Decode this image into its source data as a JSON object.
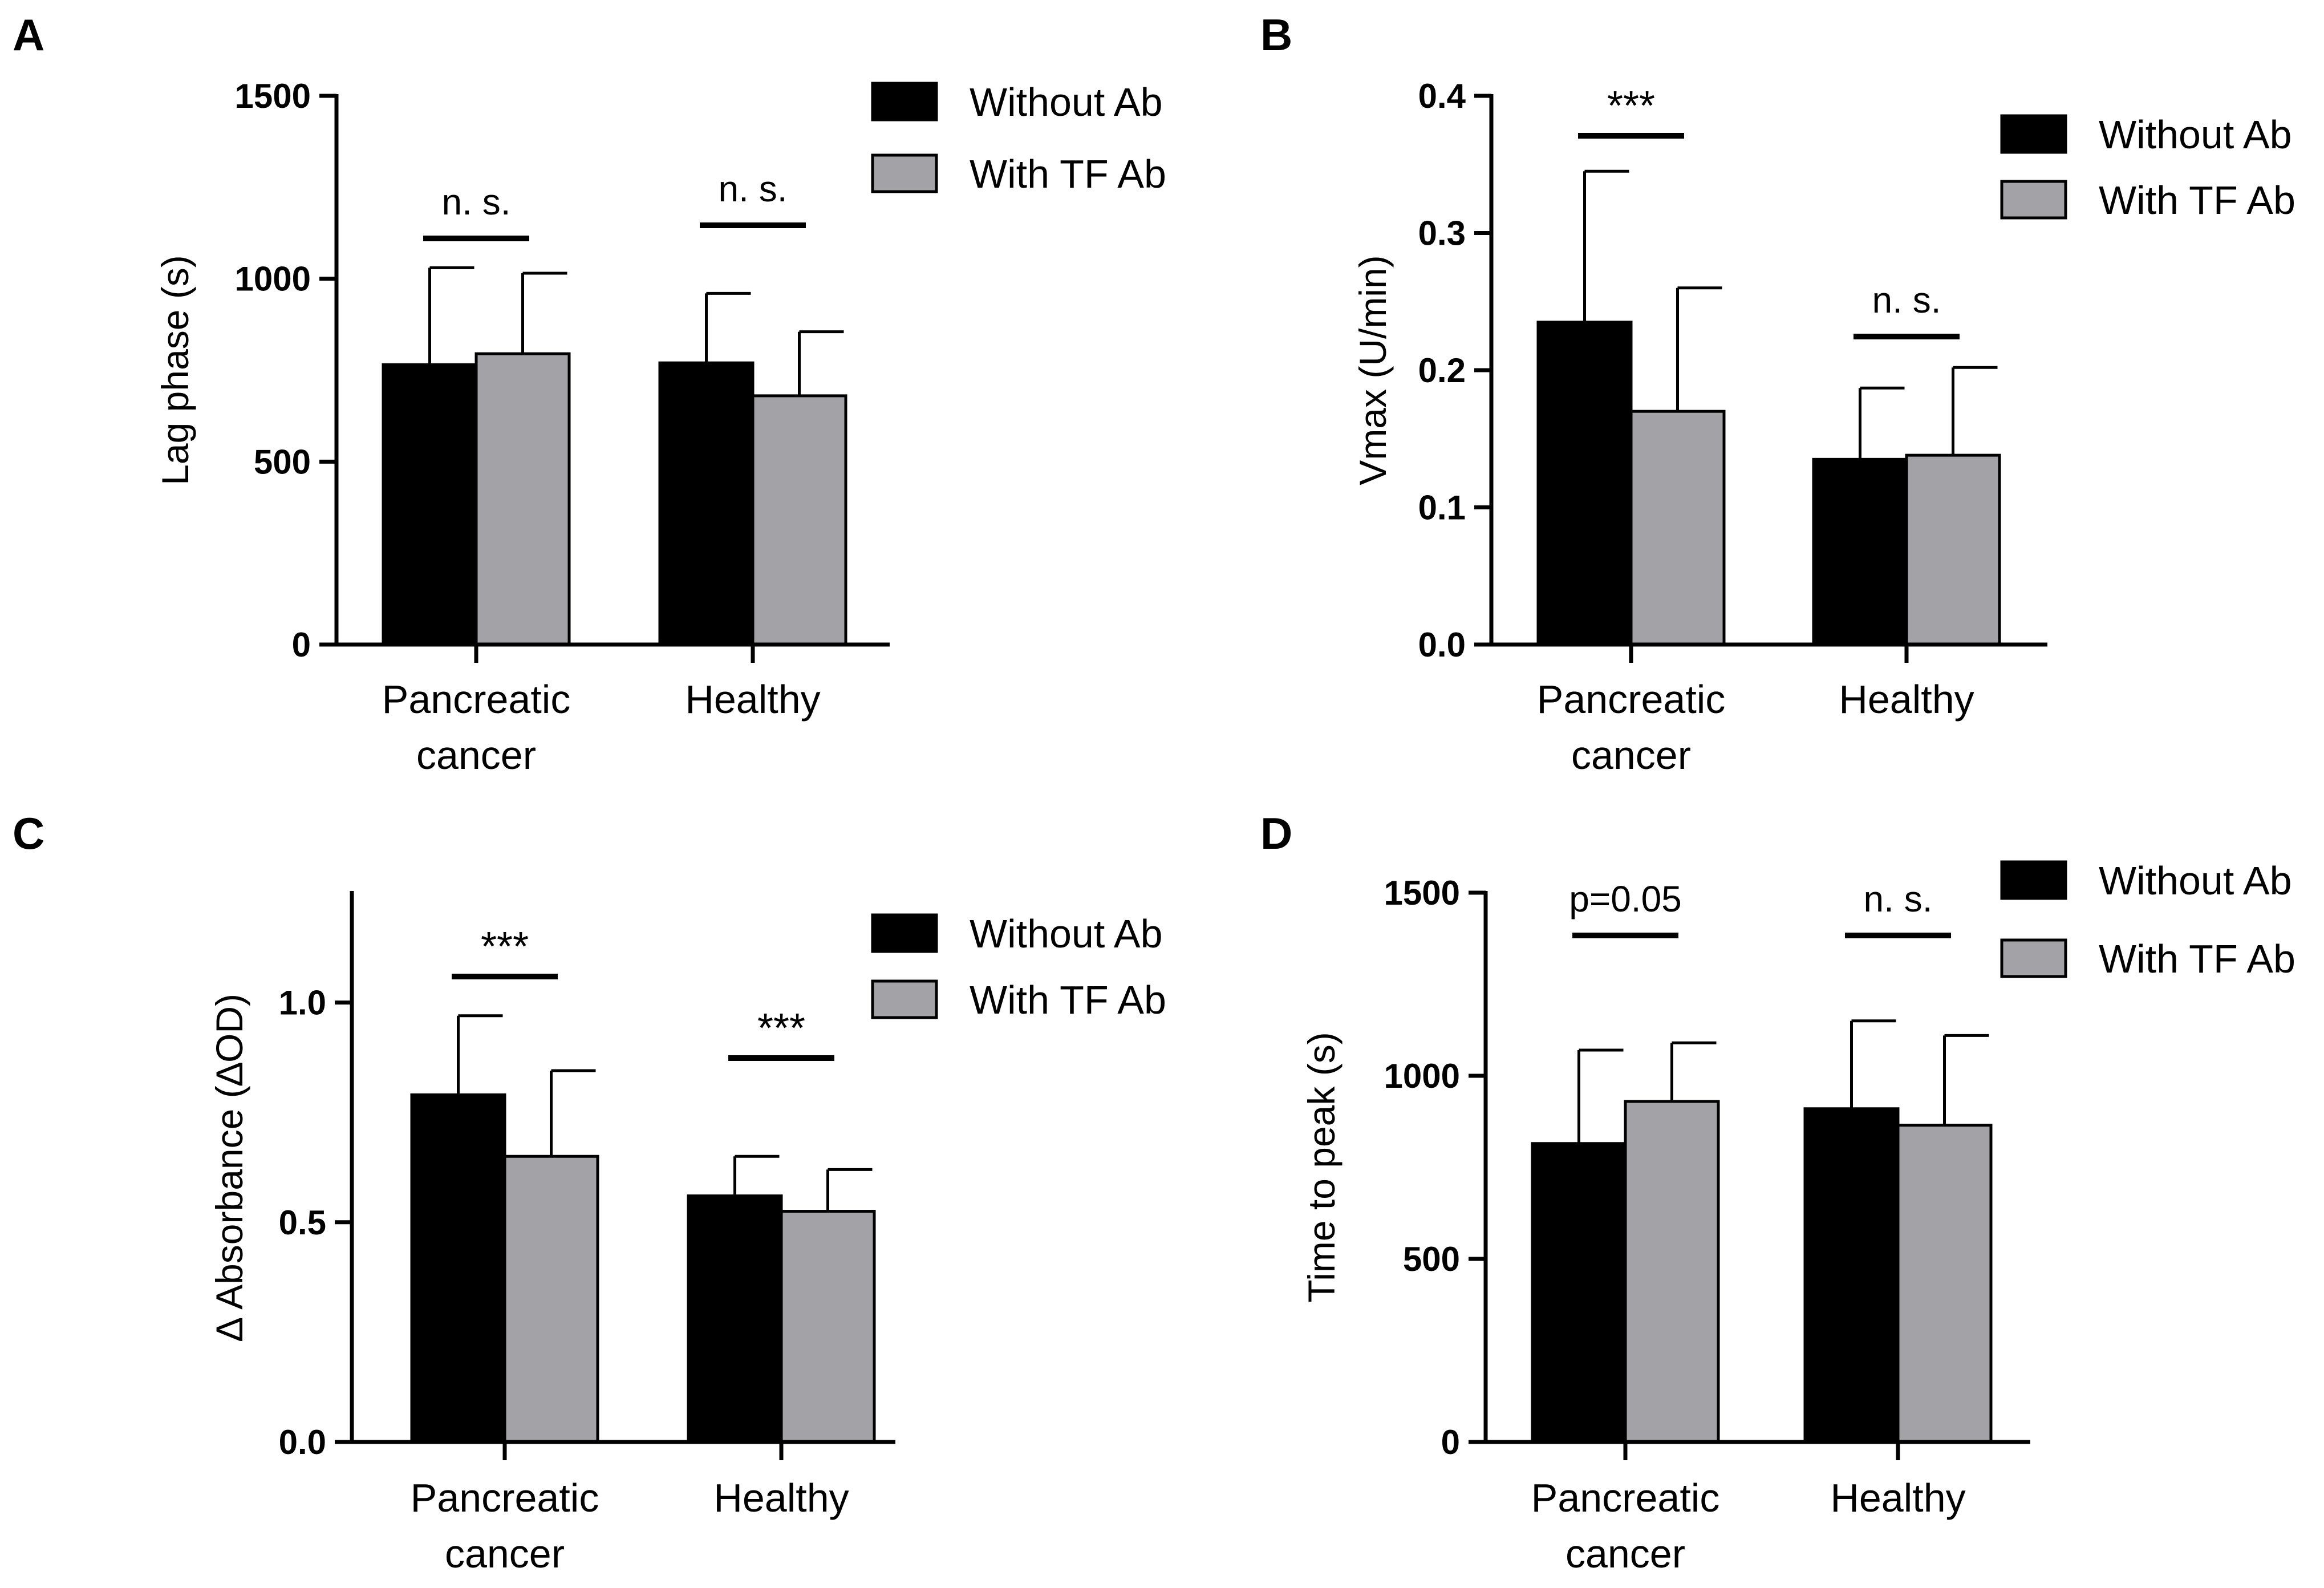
{
  "colors": {
    "without": "#000000",
    "with": "#a3a2a6",
    "axis": "#000000"
  },
  "chart_data": [
    {
      "type": "bar",
      "panel": "A",
      "ylabel": "Lag phase (s)",
      "ylim": [
        0,
        1500
      ],
      "yticks": [
        0,
        500,
        1000,
        1500
      ],
      "categories": [
        "Pancreatic\ncancer",
        "Healthy"
      ],
      "series": [
        {
          "name": "Without Ab",
          "values": [
            765,
            770
          ],
          "errors": [
            265,
            190
          ]
        },
        {
          "name": "With TF Ab",
          "values": [
            795,
            680
          ],
          "errors": [
            220,
            175
          ]
        }
      ],
      "significance": [
        "n. s.",
        "n. s."
      ]
    },
    {
      "type": "bar",
      "panel": "B",
      "ylabel": "Vmax (U/min)",
      "ylim": [
        0,
        0.4
      ],
      "yticks": [
        0.0,
        0.1,
        0.2,
        0.3,
        0.4
      ],
      "tick_decimals": 1,
      "categories": [
        "Pancreatic\ncancer",
        "Healthy"
      ],
      "series": [
        {
          "name": "Without Ab",
          "values": [
            0.235,
            0.135
          ],
          "errors": [
            0.11,
            0.052
          ]
        },
        {
          "name": "With TF Ab",
          "values": [
            0.17,
            0.138
          ],
          "errors": [
            0.09,
            0.064
          ]
        }
      ],
      "significance": [
        "***",
        "n. s."
      ]
    },
    {
      "type": "bar",
      "panel": "C",
      "ylabel": "∆ Absorbance (∆OD)",
      "ylim": [
        0,
        1.25
      ],
      "yticks": [
        0.0,
        0.5,
        1.0
      ],
      "tick_decimals": 1,
      "categories": [
        "Pancreatic\ncancer",
        "Healthy"
      ],
      "series": [
        {
          "name": "Without Ab",
          "values": [
            0.79,
            0.56
          ],
          "errors": [
            0.18,
            0.09
          ]
        },
        {
          "name": "With TF Ab",
          "values": [
            0.65,
            0.525
          ],
          "errors": [
            0.195,
            0.095
          ]
        }
      ],
      "significance": [
        "***",
        "***"
      ]
    },
    {
      "type": "bar",
      "panel": "D",
      "ylabel": "Time to peak (s)",
      "ylim": [
        0,
        1500
      ],
      "yticks": [
        0,
        500,
        1000,
        1500
      ],
      "categories": [
        "Pancreatic\ncancer",
        "Healthy"
      ],
      "series": [
        {
          "name": "Without Ab",
          "values": [
            815,
            910
          ],
          "errors": [
            255,
            240
          ]
        },
        {
          "name": "With TF Ab",
          "values": [
            930,
            865
          ],
          "errors": [
            160,
            245
          ]
        }
      ],
      "significance": [
        "p=0.05",
        "n. s."
      ]
    }
  ]
}
